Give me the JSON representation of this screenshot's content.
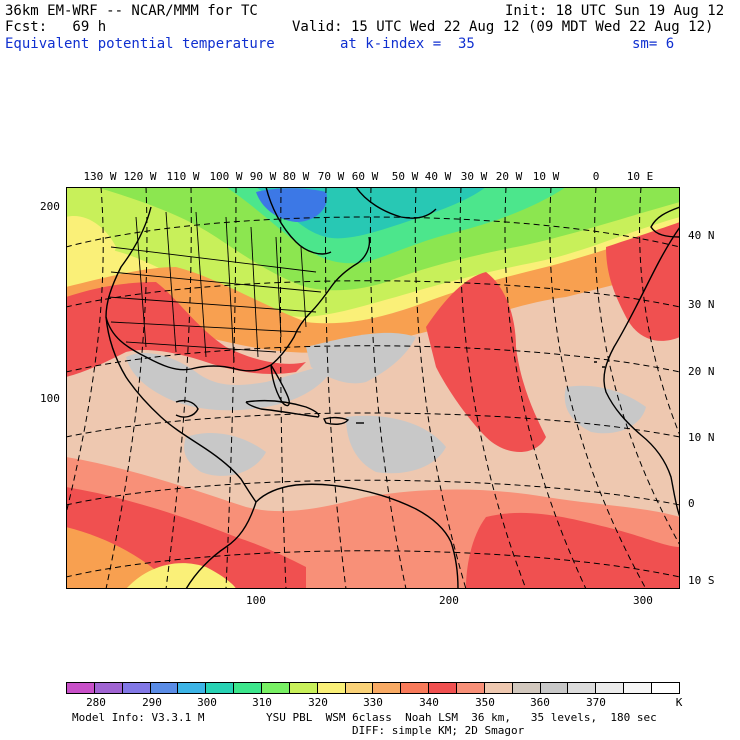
{
  "header": {
    "model_title": "36km EM-WRF -- NCAR/MMM for TC",
    "forecast": "Fcst:   69 h",
    "init": "Init: 18 UTC Sun 19 Aug 12",
    "valid": "Valid: 15 UTC Wed 22 Aug 12 (09 MDT Wed 22 Aug 12)",
    "field": "Equivalent potential temperature",
    "level": "at k-index =  35",
    "smoothing": "sm= 6"
  },
  "map": {
    "longitude_labels": [
      "130 W",
      "120 W",
      "110 W",
      "100 W",
      "90 W",
      "80 W",
      "70 W",
      "60 W",
      "50 W",
      "40 W",
      "30 W",
      "20 W",
      "10 W",
      "0",
      "10 E"
    ],
    "latitude_labels": [
      "40 N",
      "30 N",
      "20 N",
      "10 N",
      "0",
      "10 S"
    ],
    "grid_y_labels": [
      "200",
      "100"
    ],
    "grid_x_labels": [
      "100",
      "200",
      "300"
    ],
    "colors": {
      "very_low": "#3c78e6",
      "low_cyan": "#28c8b4",
      "mint": "#4ce68c",
      "green": "#8ce650",
      "yellow_green": "#c8f05a",
      "yellow": "#faf078",
      "orange": "#f8a050",
      "red": "#f05050",
      "salmon": "#f89078",
      "tan": "#eec8b0",
      "gray": "#c8c8c8"
    }
  },
  "legend": {
    "colors": [
      "#c850c8",
      "#a064d2",
      "#8278e6",
      "#5a8ce6",
      "#3cb4e6",
      "#28d2b4",
      "#3ce68c",
      "#78f064",
      "#c8f05a",
      "#faf078",
      "#fad278",
      "#f8aa64",
      "#f87a5a",
      "#f05050",
      "#f89078",
      "#eec8b0",
      "#d2c8be",
      "#c8c8c8",
      "#dcdcdc",
      "#ebebeb",
      "#f6f6f6",
      "#ffffff"
    ],
    "labels": [
      "280",
      "290",
      "300",
      "310",
      "320",
      "330",
      "340",
      "350",
      "360",
      "370",
      "K"
    ]
  },
  "footer": {
    "model_info": "Model Info: V3.3.1 M",
    "physics_line1": "YSU PBL  WSM 6class  Noah LSM  36 km,   35 levels,  180 sec",
    "physics_line2": "DIFF: simple KM; 2D Smagor"
  }
}
